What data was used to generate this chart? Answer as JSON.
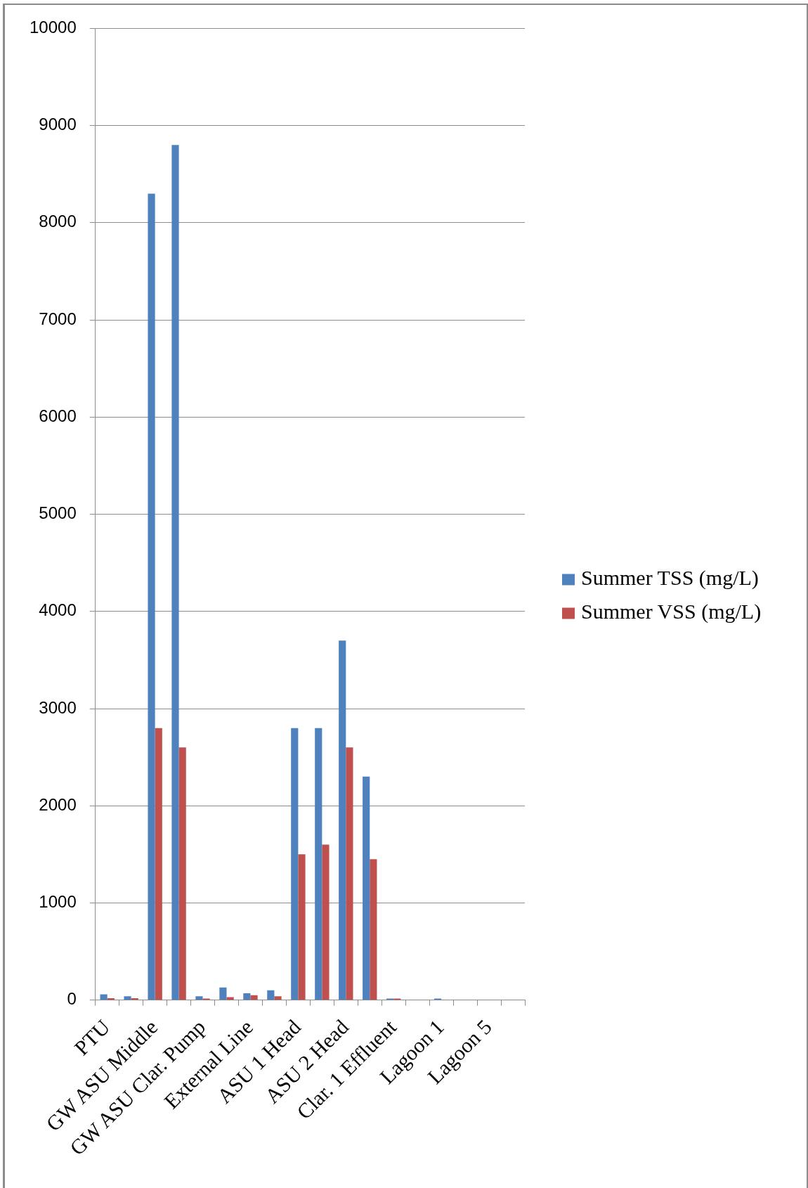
{
  "chart_data": {
    "type": "bar",
    "categories": [
      "PTU",
      null,
      "GW ASU Middle",
      null,
      "GW ASU Clar. Pump",
      null,
      "External Line",
      null,
      "ASU 1 Head",
      null,
      "ASU 2 Head",
      null,
      "Clar. 1 Effluent",
      null,
      "Lagoon 1",
      null,
      "Lagoon 5",
      null
    ],
    "series": [
      {
        "name": "Summer TSS (mg/L)",
        "color": "#4f81bd",
        "values": [
          60,
          40,
          8300,
          8800,
          40,
          130,
          70,
          100,
          2800,
          2800,
          3700,
          2300,
          15,
          null,
          15,
          null,
          null,
          null
        ]
      },
      {
        "name": "Summer VSS (mg/L)",
        "color": "#c0504d",
        "values": [
          20,
          20,
          2800,
          2600,
          15,
          30,
          50,
          40,
          1500,
          1600,
          2600,
          1450,
          15,
          null,
          null,
          null,
          null,
          null
        ]
      }
    ],
    "ylim": [
      0,
      10000
    ],
    "yticks": [
      0,
      1000,
      2000,
      3000,
      4000,
      5000,
      6000,
      7000,
      8000,
      9000,
      10000
    ],
    "grid": "y",
    "legend": "right"
  }
}
